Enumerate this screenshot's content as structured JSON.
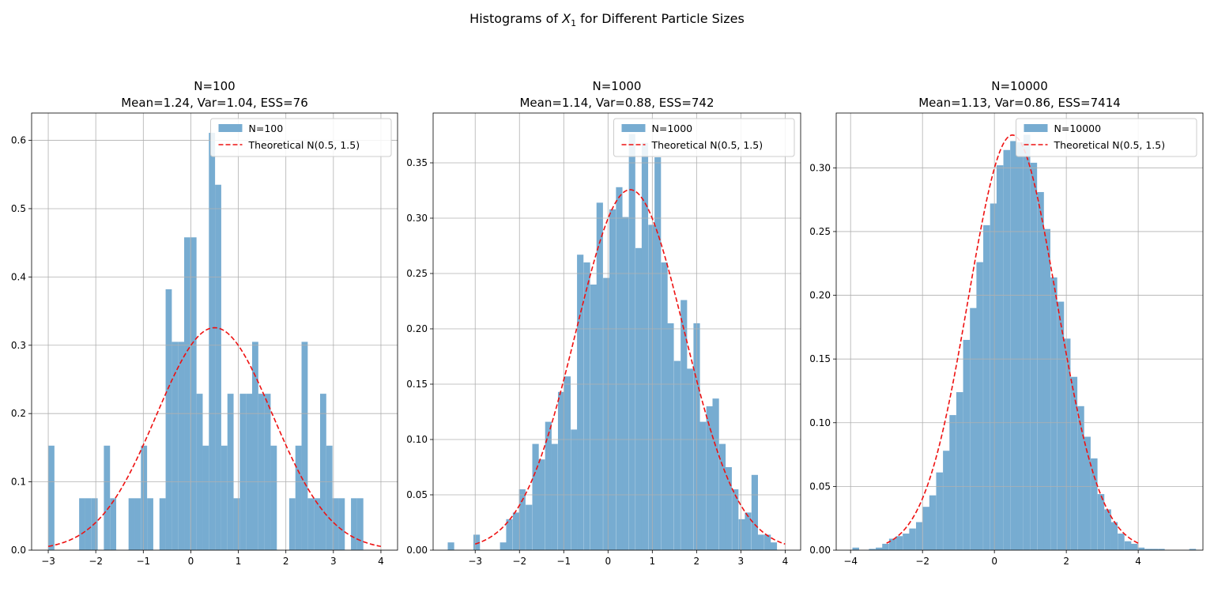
{
  "figure": {
    "suptitle_pre": "Histograms of ",
    "suptitle_var": "X",
    "suptitle_sub": "1",
    "suptitle_post": " for Different Particle Sizes"
  },
  "colors": {
    "bar": "#77acd1",
    "curve": "#ee1111",
    "grid": "#b0b0b0"
  },
  "chart_data": [
    {
      "type": "bar",
      "title": "N=100",
      "subtitle": "Mean=1.24, Var=1.04, ESS=76",
      "legend_location": "upper right",
      "legend": [
        "N=100",
        "Theoretical N(0.5, 1.5)"
      ],
      "grid": true,
      "xlim": [
        -3.35,
        4.35
      ],
      "ylim": [
        0,
        0.64
      ],
      "xticks": [
        -3,
        -2,
        -1,
        0,
        1,
        2,
        3,
        4
      ],
      "yticks": [
        0.0,
        0.1,
        0.2,
        0.3,
        0.4,
        0.5,
        0.6
      ],
      "xtick_labels": [
        "−3",
        "−2",
        "−1",
        "0",
        "1",
        "2",
        "3",
        "4"
      ],
      "ytick_labels": [
        "0.0",
        "0.1",
        "0.2",
        "0.3",
        "0.4",
        "0.5",
        "0.6"
      ],
      "bin_width": 0.13,
      "histogram": [
        [
          -3.0,
          0.153
        ],
        [
          -2.35,
          0.076
        ],
        [
          -2.22,
          0.076
        ],
        [
          -2.09,
          0.076
        ],
        [
          -1.83,
          0.153
        ],
        [
          -1.7,
          0.076
        ],
        [
          -1.31,
          0.076
        ],
        [
          -1.18,
          0.076
        ],
        [
          -1.05,
          0.153
        ],
        [
          -0.92,
          0.076
        ],
        [
          -0.66,
          0.076
        ],
        [
          -0.53,
          0.382
        ],
        [
          -0.4,
          0.305
        ],
        [
          -0.27,
          0.305
        ],
        [
          -0.14,
          0.458
        ],
        [
          -0.01,
          0.458
        ],
        [
          0.12,
          0.229
        ],
        [
          0.25,
          0.153
        ],
        [
          0.38,
          0.611
        ],
        [
          0.51,
          0.535
        ],
        [
          0.64,
          0.153
        ],
        [
          0.77,
          0.229
        ],
        [
          0.9,
          0.076
        ],
        [
          1.03,
          0.229
        ],
        [
          1.16,
          0.229
        ],
        [
          1.29,
          0.305
        ],
        [
          1.42,
          0.229
        ],
        [
          1.55,
          0.229
        ],
        [
          1.68,
          0.153
        ],
        [
          2.07,
          0.076
        ],
        [
          2.2,
          0.153
        ],
        [
          2.33,
          0.305
        ],
        [
          2.46,
          0.076
        ],
        [
          2.59,
          0.076
        ],
        [
          2.72,
          0.229
        ],
        [
          2.85,
          0.153
        ],
        [
          2.98,
          0.076
        ],
        [
          3.11,
          0.076
        ],
        [
          3.37,
          0.076
        ],
        [
          3.5,
          0.076
        ]
      ],
      "curve": {
        "name": "Theoretical N(0.5, 1.5)",
        "mean": 0.5,
        "variance": 1.5,
        "x_range": [
          -3,
          4
        ]
      }
    },
    {
      "type": "bar",
      "title": "N=1000",
      "subtitle": "Mean=1.14, Var=0.88, ESS=742",
      "legend_location": "upper right",
      "legend": [
        "N=1000",
        "Theoretical N(0.5, 1.5)"
      ],
      "grid": true,
      "xlim": [
        -3.95,
        4.35
      ],
      "ylim": [
        0,
        0.395
      ],
      "xticks": [
        -3,
        -2,
        -1,
        0,
        1,
        2,
        3,
        4
      ],
      "yticks": [
        0.0,
        0.05,
        0.1,
        0.15,
        0.2,
        0.25,
        0.3,
        0.35
      ],
      "xtick_labels": [
        "−3",
        "−2",
        "−1",
        "0",
        "1",
        "2",
        "3",
        "4"
      ],
      "ytick_labels": [
        "0.00",
        "0.05",
        "0.10",
        "0.15",
        "0.20",
        "0.25",
        "0.30",
        "0.35"
      ],
      "bin_width": 0.146,
      "histogram": [
        [
          -3.62,
          0.007
        ],
        [
          -3.04,
          0.007
        ],
        [
          -3.04,
          0.014
        ],
        [
          -2.44,
          0.007
        ],
        [
          -2.3,
          0.028
        ],
        [
          -2.15,
          0.034
        ],
        [
          -2.01,
          0.055
        ],
        [
          -1.86,
          0.041
        ],
        [
          -1.71,
          0.096
        ],
        [
          -1.57,
          0.082
        ],
        [
          -1.42,
          0.116
        ],
        [
          -1.28,
          0.096
        ],
        [
          -1.13,
          0.143
        ],
        [
          -0.99,
          0.157
        ],
        [
          -0.84,
          0.109
        ],
        [
          -0.7,
          0.267
        ],
        [
          -0.55,
          0.26
        ],
        [
          -0.4,
          0.24
        ],
        [
          -0.26,
          0.314
        ],
        [
          -0.11,
          0.246
        ],
        [
          0.03,
          0.308
        ],
        [
          0.18,
          0.328
        ],
        [
          0.32,
          0.301
        ],
        [
          0.47,
          0.376
        ],
        [
          0.62,
          0.273
        ],
        [
          0.76,
          0.368
        ],
        [
          0.91,
          0.294
        ],
        [
          1.05,
          0.355
        ],
        [
          1.2,
          0.26
        ],
        [
          1.34,
          0.205
        ],
        [
          1.49,
          0.171
        ],
        [
          1.64,
          0.226
        ],
        [
          1.78,
          0.164
        ],
        [
          1.93,
          0.205
        ],
        [
          2.07,
          0.116
        ],
        [
          2.22,
          0.13
        ],
        [
          2.36,
          0.137
        ],
        [
          2.51,
          0.096
        ],
        [
          2.65,
          0.075
        ],
        [
          2.8,
          0.055
        ],
        [
          2.95,
          0.028
        ],
        [
          3.09,
          0.034
        ],
        [
          3.24,
          0.068
        ],
        [
          3.38,
          0.014
        ],
        [
          3.53,
          0.014
        ],
        [
          3.67,
          0.007
        ]
      ],
      "curve": {
        "name": "Theoretical N(0.5, 1.5)",
        "mean": 0.5,
        "variance": 1.5,
        "x_range": [
          -3,
          4
        ]
      }
    },
    {
      "type": "bar",
      "title": "N=10000",
      "subtitle": "Mean=1.13, Var=0.86, ESS=7414",
      "legend_location": "upper right",
      "legend": [
        "N=10000",
        "Theoretical N(0.5, 1.5)"
      ],
      "grid": true,
      "xlim": [
        -4.4,
        5.8
      ],
      "ylim": [
        0,
        0.343
      ],
      "xticks": [
        -4,
        -2,
        0,
        2,
        4
      ],
      "yticks": [
        0.0,
        0.05,
        0.1,
        0.15,
        0.2,
        0.25,
        0.3
      ],
      "xtick_labels": [
        "−4",
        "−2",
        "0",
        "2",
        "4"
      ],
      "ytick_labels": [
        "0.00",
        "0.05",
        "0.10",
        "0.15",
        "0.20",
        "0.25",
        "0.30"
      ],
      "bin_width": 0.187,
      "histogram": [
        [
          -3.95,
          0.002
        ],
        [
          -3.49,
          0.001
        ],
        [
          -3.3,
          0.002
        ],
        [
          -3.12,
          0.005
        ],
        [
          -2.93,
          0.009
        ],
        [
          -2.74,
          0.011
        ],
        [
          -2.55,
          0.013
        ],
        [
          -2.37,
          0.017
        ],
        [
          -2.18,
          0.022
        ],
        [
          -1.99,
          0.034
        ],
        [
          -1.81,
          0.043
        ],
        [
          -1.62,
          0.061
        ],
        [
          -1.43,
          0.078
        ],
        [
          -1.25,
          0.106
        ],
        [
          -1.06,
          0.124
        ],
        [
          -0.87,
          0.165
        ],
        [
          -0.68,
          0.19
        ],
        [
          -0.5,
          0.226
        ],
        [
          -0.31,
          0.255
        ],
        [
          -0.12,
          0.272
        ],
        [
          0.06,
          0.302
        ],
        [
          0.25,
          0.314
        ],
        [
          0.44,
          0.321
        ],
        [
          0.62,
          0.32
        ],
        [
          0.81,
          0.326
        ],
        [
          1.0,
          0.304
        ],
        [
          1.19,
          0.281
        ],
        [
          1.37,
          0.252
        ],
        [
          1.56,
          0.214
        ],
        [
          1.75,
          0.195
        ],
        [
          1.93,
          0.166
        ],
        [
          2.12,
          0.136
        ],
        [
          2.31,
          0.113
        ],
        [
          2.49,
          0.089
        ],
        [
          2.68,
          0.072
        ],
        [
          2.87,
          0.044
        ],
        [
          3.06,
          0.032
        ],
        [
          3.24,
          0.022
        ],
        [
          3.43,
          0.013
        ],
        [
          3.62,
          0.007
        ],
        [
          3.8,
          0.005
        ],
        [
          3.99,
          0.002
        ],
        [
          4.18,
          0.001
        ],
        [
          4.36,
          0.001
        ],
        [
          4.55,
          0.001
        ],
        [
          5.42,
          0.001
        ]
      ],
      "curve": {
        "name": "Theoretical N(0.5, 1.5)",
        "mean": 0.5,
        "variance": 1.5,
        "x_range": [
          -3,
          4
        ]
      }
    }
  ]
}
